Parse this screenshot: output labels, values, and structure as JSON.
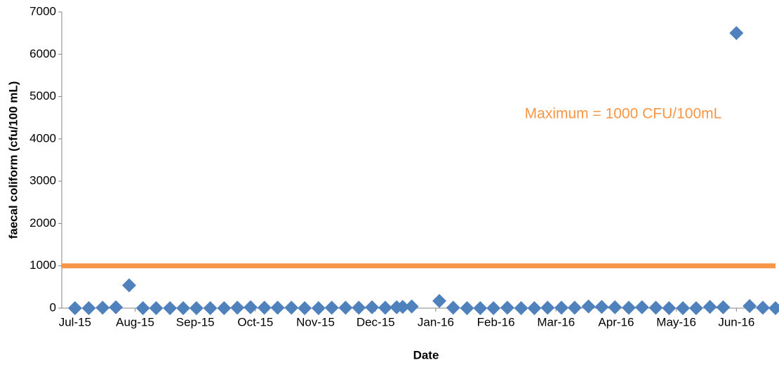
{
  "chart_data": {
    "type": "scatter",
    "x_label": "Date",
    "y_label": "faecal coliform (cfu/100 mL)",
    "xlim": [
      -0.22,
      11.65
    ],
    "ylim": [
      0,
      7000
    ],
    "xticks": [
      {
        "value": 0,
        "label": "Jul-15"
      },
      {
        "value": 1,
        "label": "Aug-15"
      },
      {
        "value": 2,
        "label": "Sep-15"
      },
      {
        "value": 3,
        "label": "Oct-15"
      },
      {
        "value": 4,
        "label": "Nov-15"
      },
      {
        "value": 5,
        "label": "Dec-15"
      },
      {
        "value": 6,
        "label": "Jan-16"
      },
      {
        "value": 7,
        "label": "Feb-16"
      },
      {
        "value": 8,
        "label": "Mar-16"
      },
      {
        "value": 9,
        "label": "Apr-16"
      },
      {
        "value": 10,
        "label": "May-16"
      },
      {
        "value": 11,
        "label": "Jun-16"
      }
    ],
    "yticks": [
      0,
      1000,
      2000,
      3000,
      4000,
      5000,
      6000,
      7000
    ],
    "grid": false,
    "color": "#4f81bd",
    "x": [
      0,
      0.23,
      0.46,
      0.68,
      0.9,
      1.13,
      1.35,
      1.58,
      1.8,
      2.02,
      2.25,
      2.48,
      2.7,
      2.92,
      3.15,
      3.37,
      3.6,
      3.82,
      4.05,
      4.27,
      4.5,
      4.72,
      4.94,
      5.16,
      5.35,
      5.45,
      5.6,
      6.06,
      6.29,
      6.52,
      6.74,
      6.96,
      7.19,
      7.42,
      7.64,
      7.86,
      8.09,
      8.31,
      8.54,
      8.76,
      8.98,
      9.21,
      9.43,
      9.66,
      9.88,
      10.11,
      10.33,
      10.56,
      10.78,
      11.0,
      11.22,
      11.44,
      11.65
    ],
    "values": [
      0,
      0,
      10,
      20,
      540,
      0,
      0,
      0,
      0,
      0,
      0,
      0,
      10,
      20,
      10,
      10,
      10,
      0,
      0,
      10,
      10,
      10,
      20,
      10,
      20,
      30,
      40,
      170,
      10,
      0,
      0,
      0,
      10,
      0,
      0,
      10,
      10,
      10,
      40,
      30,
      20,
      10,
      20,
      10,
      0,
      0,
      0,
      30,
      20,
      6500,
      50,
      10,
      0
    ],
    "reference_line": {
      "value": 1000,
      "label": "Maximum = 1000 CFU/100mL",
      "color": "#f79646"
    }
  }
}
